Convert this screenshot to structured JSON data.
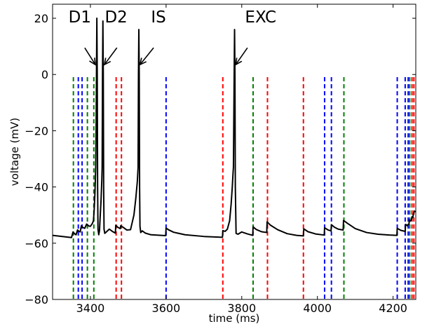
{
  "chart_data": {
    "type": "line",
    "title": "",
    "xlabel": "time (ms)",
    "ylabel": "voltage (mV)",
    "xlim": [
      3300,
      4260
    ],
    "ylim": [
      -80,
      25
    ],
    "xticks": [
      3400,
      3600,
      3800,
      4000,
      4200
    ],
    "yticks": [
      20,
      0,
      -20,
      -40,
      -60,
      -80
    ],
    "grid": false,
    "trace": {
      "color": "#000000",
      "points": [
        [
          3300,
          -57.2
        ],
        [
          3350,
          -58.0
        ],
        [
          3354,
          -56.0
        ],
        [
          3358,
          -56.6
        ],
        [
          3362,
          -57.0
        ],
        [
          3366,
          -55.3
        ],
        [
          3370,
          -55.8
        ],
        [
          3373,
          -56.0
        ],
        [
          3376,
          -53.8
        ],
        [
          3380,
          -54.4
        ],
        [
          3385,
          -54.7
        ],
        [
          3390,
          -53.2
        ],
        [
          3396,
          -53.9
        ],
        [
          3400,
          -54.0
        ],
        [
          3405,
          -53.0
        ],
        [
          3408,
          -52.0
        ],
        [
          3410,
          -48.0
        ],
        [
          3412,
          -42.0
        ],
        [
          3414,
          -33.0
        ],
        [
          3415,
          -20.0
        ],
        [
          3416,
          0.0
        ],
        [
          3417,
          20.0
        ],
        [
          3418,
          0.0
        ],
        [
          3419,
          -40.0
        ],
        [
          3420,
          -55.0
        ],
        [
          3422,
          -57.0
        ],
        [
          3424,
          -55.5
        ],
        [
          3426,
          -50.0
        ],
        [
          3428,
          -45.0
        ],
        [
          3430,
          -38.0
        ],
        [
          3431,
          -33.0
        ],
        [
          3432,
          0.0
        ],
        [
          3433,
          19.0
        ],
        [
          3434,
          0.0
        ],
        [
          3435,
          -40.0
        ],
        [
          3436,
          -55.0
        ],
        [
          3438,
          -56.5
        ],
        [
          3442,
          -56.0
        ],
        [
          3450,
          -55.0
        ],
        [
          3458,
          -55.8
        ],
        [
          3466,
          -56.4
        ],
        [
          3467,
          -53.6
        ],
        [
          3472,
          -54.3
        ],
        [
          3479,
          -54.8
        ],
        [
          3480,
          -53.8
        ],
        [
          3486,
          -54.3
        ],
        [
          3496,
          -55.3
        ],
        [
          3506,
          -55.2
        ],
        [
          3515,
          -50.0
        ],
        [
          3520,
          -44.0
        ],
        [
          3524,
          -38.0
        ],
        [
          3526,
          -33.0
        ],
        [
          3527,
          0.0
        ],
        [
          3528,
          16.0
        ],
        [
          3529,
          0.0
        ],
        [
          3530,
          -40.0
        ],
        [
          3531,
          -54.0
        ],
        [
          3533,
          -56.2
        ],
        [
          3537,
          -55.6
        ],
        [
          3545,
          -56.4
        ],
        [
          3560,
          -57.0
        ],
        [
          3599,
          -57.3
        ],
        [
          3600,
          -54.6
        ],
        [
          3606,
          -55.2
        ],
        [
          3620,
          -56.1
        ],
        [
          3650,
          -57.0
        ],
        [
          3700,
          -57.6
        ],
        [
          3749,
          -57.9
        ],
        [
          3750,
          -55.5
        ],
        [
          3756,
          -55.8
        ],
        [
          3762,
          -55.0
        ],
        [
          3768,
          -52.0
        ],
        [
          3772,
          -46.0
        ],
        [
          3775,
          -40.0
        ],
        [
          3777,
          -35.0
        ],
        [
          3778,
          -33.0
        ],
        [
          3780,
          0.0
        ],
        [
          3781,
          16.0
        ],
        [
          3782,
          0.0
        ],
        [
          3783,
          -40.0
        ],
        [
          3785,
          -56.5
        ],
        [
          3790,
          -56.8
        ],
        [
          3800,
          -56.0
        ],
        [
          3815,
          -56.7
        ],
        [
          3829,
          -57.2
        ],
        [
          3830,
          -54.2
        ],
        [
          3838,
          -55.1
        ],
        [
          3852,
          -55.9
        ],
        [
          3866,
          -56.2
        ],
        [
          3867,
          -52.4
        ],
        [
          3876,
          -53.6
        ],
        [
          3895,
          -55.2
        ],
        [
          3920,
          -56.6
        ],
        [
          3945,
          -57.2
        ],
        [
          3963,
          -57.4
        ],
        [
          3964,
          -54.9
        ],
        [
          3975,
          -55.9
        ],
        [
          3995,
          -56.7
        ],
        [
          4018,
          -57.1
        ],
        [
          4019,
          -54.5
        ],
        [
          4028,
          -55.3
        ],
        [
          4036,
          -55.6
        ],
        [
          4037,
          -53.4
        ],
        [
          4045,
          -54.3
        ],
        [
          4055,
          -55.0
        ],
        [
          4068,
          -55.3
        ],
        [
          4069,
          -51.9
        ],
        [
          4078,
          -52.8
        ],
        [
          4100,
          -54.8
        ],
        [
          4130,
          -56.2
        ],
        [
          4160,
          -56.8
        ],
        [
          4190,
          -57.1
        ],
        [
          4210,
          -57.2
        ],
        [
          4211,
          -54.7
        ],
        [
          4220,
          -55.4
        ],
        [
          4232,
          -55.8
        ],
        [
          4233,
          -53.3
        ],
        [
          4238,
          -53.8
        ],
        [
          4239,
          -53.4
        ],
        [
          4242,
          -53.2
        ],
        [
          4243,
          -51.7
        ],
        [
          4246,
          -52.1
        ],
        [
          4248,
          -51.8
        ],
        [
          4250,
          -50.6
        ],
        [
          4252,
          -50.9
        ],
        [
          4254,
          -49.5
        ],
        [
          4256,
          -48.6
        ],
        [
          4260,
          -48.8
        ]
      ]
    },
    "event_lines": [
      {
        "x": 3355,
        "color": "#008000"
      },
      {
        "x": 3368,
        "color": "#0000ff"
      },
      {
        "x": 3378,
        "color": "#0000ff"
      },
      {
        "x": 3392,
        "color": "#008000"
      },
      {
        "x": 3409,
        "color": "#008000"
      },
      {
        "x": 3468,
        "color": "#ff0000"
      },
      {
        "x": 3482,
        "color": "#ff0000"
      },
      {
        "x": 3600,
        "color": "#0000ff"
      },
      {
        "x": 3750,
        "color": "#ff0000"
      },
      {
        "x": 3830,
        "color": "#008000"
      },
      {
        "x": 3868,
        "color": "#ff0000"
      },
      {
        "x": 3963,
        "color": "#ff0000"
      },
      {
        "x": 4019,
        "color": "#0000ff"
      },
      {
        "x": 4037,
        "color": "#0000ff"
      },
      {
        "x": 4070,
        "color": "#008000"
      },
      {
        "x": 4211,
        "color": "#0000ff"
      },
      {
        "x": 4232,
        "color": "#0000ff"
      },
      {
        "x": 4240,
        "color": "#0000ff"
      },
      {
        "x": 4244,
        "color": "#008000"
      },
      {
        "x": 4250,
        "color": "#ff0000"
      },
      {
        "x": 4255,
        "color": "#ff0000"
      }
    ],
    "annotations": [
      {
        "label": "D1",
        "text_x": 3372,
        "text_y": 18.5,
        "arrow_from": [
          3385,
          9.5
        ],
        "arrow_to": [
          3413,
          3.5
        ]
      },
      {
        "label": "D2",
        "text_x": 3468,
        "text_y": 18.5,
        "arrow_from": [
          3470,
          9.5
        ],
        "arrow_to": [
          3437,
          3.5
        ]
      },
      {
        "label": "IS",
        "text_x": 3580,
        "text_y": 18.5,
        "arrow_from": [
          3567,
          9.5
        ],
        "arrow_to": [
          3531,
          3.5
        ]
      },
      {
        "label": "EXC",
        "text_x": 3850,
        "text_y": 18.5,
        "arrow_from": [
          3815,
          9.5
        ],
        "arrow_to": [
          3784,
          3.5
        ]
      }
    ]
  }
}
